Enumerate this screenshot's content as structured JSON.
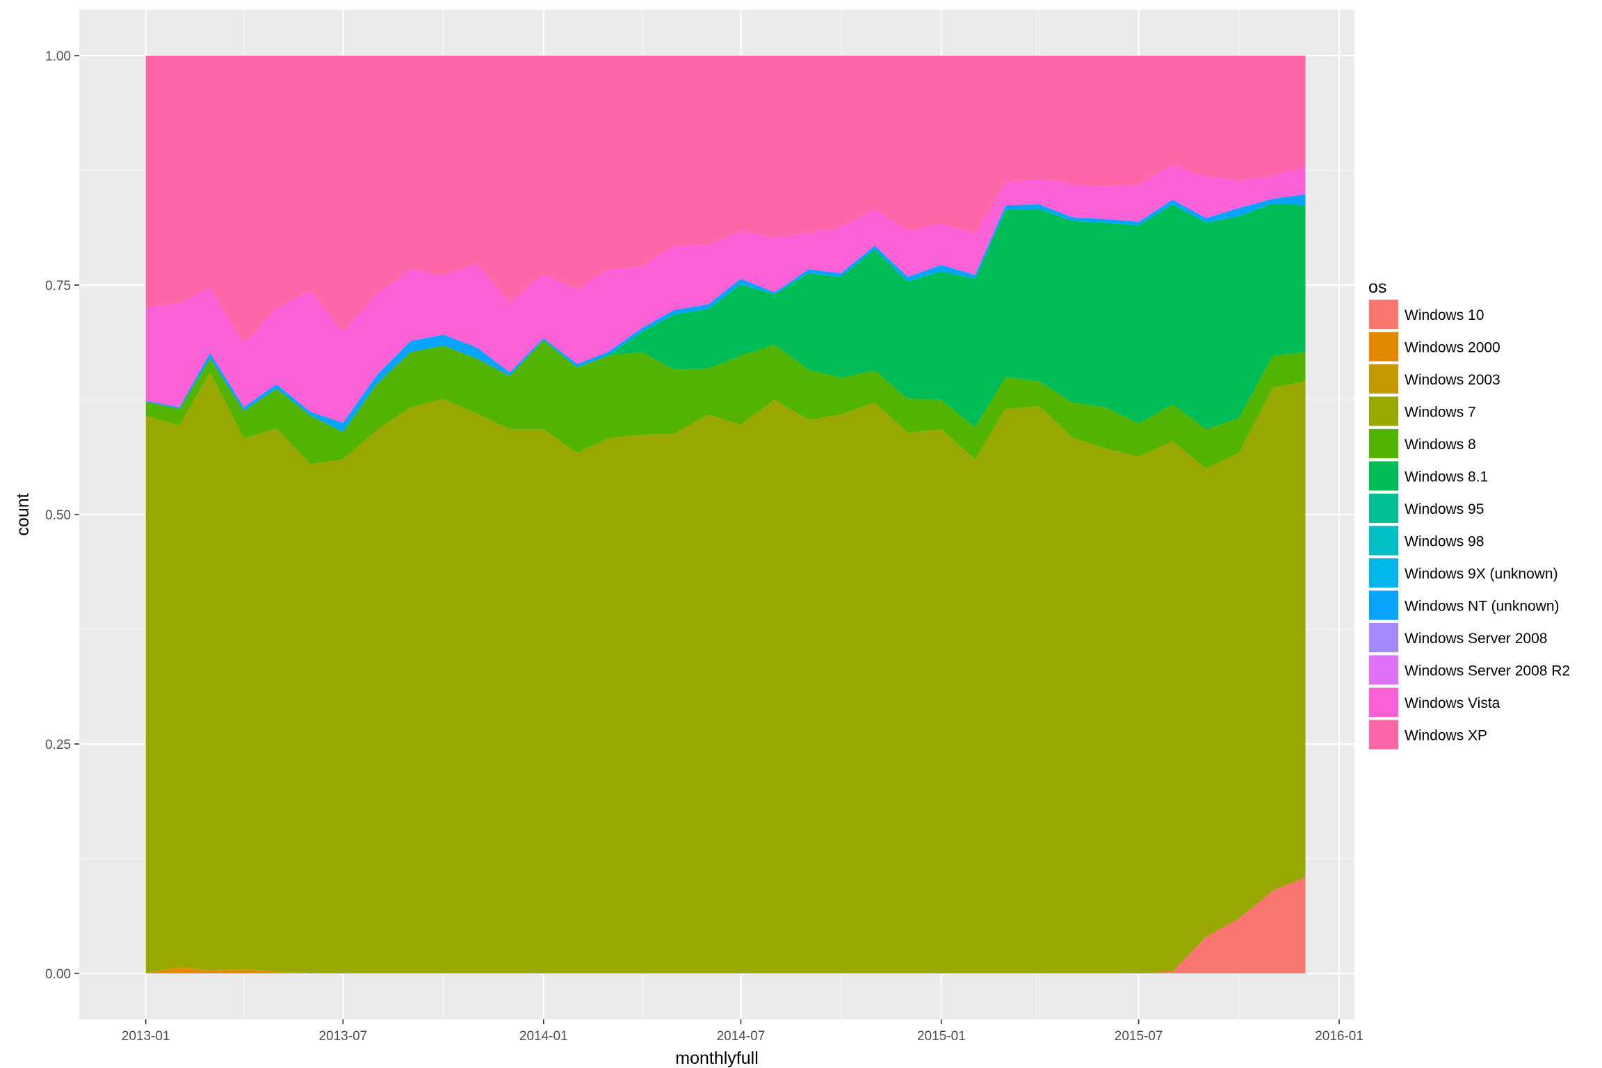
{
  "chart_data": {
    "type": "area",
    "stacked": true,
    "position": "fill",
    "xlabel": "monthlyfull",
    "ylabel": "count",
    "xlim": [
      "2012-11-01",
      "2016-01-15"
    ],
    "ylim": [
      -0.05,
      1.05
    ],
    "x_ticks": [
      "2013-01",
      "2013-07",
      "2014-01",
      "2014-07",
      "2015-01",
      "2015-07",
      "2016-01"
    ],
    "y_ticks": [
      "0.00",
      "0.25",
      "0.50",
      "0.75",
      "1.00"
    ],
    "y_tick_values": [
      0,
      0.25,
      0.5,
      0.75,
      1.0
    ],
    "legend": {
      "title": "os",
      "position": "right"
    },
    "grid": true,
    "x": [
      "2013-01",
      "2013-02",
      "2013-03",
      "2013-04",
      "2013-05",
      "2013-06",
      "2013-07",
      "2013-08",
      "2013-09",
      "2013-10",
      "2013-11",
      "2013-12",
      "2014-01",
      "2014-02",
      "2014-03",
      "2014-04",
      "2014-05",
      "2014-06",
      "2014-07",
      "2014-08",
      "2014-09",
      "2014-10",
      "2014-11",
      "2014-12",
      "2015-01",
      "2015-02",
      "2015-03",
      "2015-04",
      "2015-05",
      "2015-06",
      "2015-07",
      "2015-08",
      "2015-09",
      "2015-10",
      "2015-11",
      "2015-12"
    ],
    "series": [
      {
        "name": "Windows 10",
        "color": "#F8766D",
        "values": [
          0,
          0,
          0,
          0,
          0,
          0,
          0,
          0,
          0,
          0,
          0,
          0,
          0,
          0,
          0,
          0,
          0,
          0,
          0,
          0,
          0,
          0,
          0,
          0,
          0,
          0,
          0,
          0,
          0,
          0,
          0,
          0.002,
          0.04,
          0.06,
          0.09,
          0.105
        ]
      },
      {
        "name": "Windows 2000",
        "color": "#E38900",
        "values": [
          0,
          0.006,
          0.003,
          0.004,
          0.001,
          0,
          0,
          0,
          0,
          0,
          0,
          0,
          0,
          0,
          0,
          0,
          0,
          0,
          0,
          0,
          0,
          0,
          0,
          0,
          0,
          0,
          0,
          0,
          0,
          0,
          0,
          0,
          0,
          0,
          0,
          0
        ]
      },
      {
        "name": "Windows 2003",
        "color": "#C49A00",
        "values": [
          0,
          0.002,
          0,
          0.001,
          0.001,
          0,
          0,
          0,
          0,
          0,
          0,
          0,
          0,
          0,
          0,
          0,
          0,
          0,
          0,
          0,
          0,
          0,
          0,
          0,
          0,
          0,
          0,
          0,
          0,
          0,
          0,
          0,
          0,
          0,
          0,
          0
        ]
      },
      {
        "name": "Windows 7",
        "color": "#99A800",
        "values": [
          0.608,
          0.589,
          0.652,
          0.578,
          0.592,
          0.555,
          0.56,
          0.592,
          0.617,
          0.626,
          0.61,
          0.593,
          0.593,
          0.567,
          0.583,
          0.587,
          0.588,
          0.609,
          0.598,
          0.625,
          0.603,
          0.609,
          0.622,
          0.589,
          0.593,
          0.56,
          0.615,
          0.618,
          0.584,
          0.572,
          0.563,
          0.578,
          0.51,
          0.507,
          0.548,
          0.54
        ]
      },
      {
        "name": "Windows 8",
        "color": "#53B400",
        "values": [
          0.015,
          0.018,
          0.015,
          0.03,
          0.043,
          0.053,
          0.03,
          0.05,
          0.06,
          0.058,
          0.06,
          0.058,
          0.097,
          0.093,
          0.09,
          0.09,
          0.07,
          0.05,
          0.075,
          0.06,
          0.055,
          0.04,
          0.035,
          0.037,
          0.032,
          0.035,
          0.035,
          0.027,
          0.038,
          0.045,
          0.036,
          0.04,
          0.043,
          0.038,
          0.035,
          0.032
        ]
      },
      {
        "name": "Windows 8.1",
        "color": "#00BC56",
        "values": [
          0,
          0,
          0,
          0,
          0,
          0,
          0,
          0,
          0,
          0,
          0,
          0,
          0,
          0,
          0,
          0.022,
          0.06,
          0.065,
          0.078,
          0.055,
          0.105,
          0.11,
          0.132,
          0.128,
          0.14,
          0.162,
          0.182,
          0.188,
          0.198,
          0.201,
          0.216,
          0.218,
          0.225,
          0.22,
          0.166,
          0.16
        ]
      },
      {
        "name": "Windows 95",
        "color": "#00C094",
        "values": [
          0,
          0,
          0,
          0,
          0,
          0,
          0,
          0,
          0,
          0,
          0,
          0,
          0,
          0,
          0,
          0,
          0,
          0,
          0,
          0,
          0,
          0,
          0,
          0,
          0,
          0,
          0,
          0,
          0,
          0,
          0,
          0,
          0,
          0,
          0,
          0
        ]
      },
      {
        "name": "Windows 98",
        "color": "#00BFC4",
        "values": [
          0,
          0,
          0,
          0,
          0,
          0,
          0,
          0,
          0,
          0,
          0,
          0,
          0,
          0,
          0,
          0,
          0,
          0,
          0,
          0,
          0,
          0,
          0,
          0,
          0,
          0,
          0,
          0,
          0,
          0,
          0,
          0,
          0,
          0,
          0,
          0
        ]
      },
      {
        "name": "Windows 9X (unknown)",
        "color": "#00B6EB",
        "values": [
          0,
          0,
          0,
          0,
          0,
          0,
          0,
          0,
          0,
          0,
          0,
          0,
          0,
          0,
          0,
          0,
          0,
          0,
          0,
          0,
          0,
          0,
          0,
          0,
          0,
          0,
          0,
          0,
          0,
          0,
          0,
          0,
          0,
          0,
          0,
          0
        ]
      },
      {
        "name": "Windows NT (unknown)",
        "color": "#06A4FF",
        "values": [
          0.001,
          0.002,
          0.006,
          0.004,
          0.005,
          0.004,
          0.01,
          0.01,
          0.012,
          0.012,
          0.012,
          0.004,
          0.002,
          0.004,
          0.004,
          0.004,
          0.005,
          0.005,
          0.006,
          0.002,
          0.004,
          0.004,
          0.004,
          0.005,
          0.007,
          0.004,
          0.005,
          0.005,
          0.004,
          0.004,
          0.004,
          0.005,
          0.005,
          0.009,
          0.005,
          0.012
        ]
      },
      {
        "name": "Windows Server 2008",
        "color": "#A58AFF",
        "values": [
          0,
          0,
          0,
          0,
          0,
          0,
          0,
          0,
          0,
          0,
          0,
          0,
          0,
          0,
          0,
          0,
          0,
          0,
          0,
          0,
          0,
          0,
          0,
          0,
          0,
          0,
          0,
          0,
          0,
          0,
          0,
          0,
          0,
          0,
          0,
          0
        ]
      },
      {
        "name": "Windows Server 2008 R2",
        "color": "#DF70F8",
        "values": [
          0,
          0,
          0,
          0,
          0,
          0,
          0,
          0,
          0,
          0,
          0,
          0,
          0,
          0,
          0,
          0,
          0,
          0,
          0,
          0,
          0,
          0,
          0,
          0,
          0,
          0,
          0,
          0,
          0,
          0,
          0,
          0,
          0,
          0,
          0,
          0
        ]
      },
      {
        "name": "Windows Vista",
        "color": "#FB61D7",
        "values": [
          0.102,
          0.113,
          0.072,
          0.069,
          0.083,
          0.132,
          0.099,
          0.088,
          0.079,
          0.064,
          0.092,
          0.075,
          0.07,
          0.081,
          0.09,
          0.067,
          0.07,
          0.065,
          0.052,
          0.06,
          0.04,
          0.05,
          0.04,
          0.05,
          0.045,
          0.045,
          0.025,
          0.028,
          0.036,
          0.035,
          0.04,
          0.038,
          0.045,
          0.03,
          0.025,
          0.03
        ]
      },
      {
        "name": "Windows XP",
        "color": "#FF66A8",
        "values": [
          0.274,
          0.27,
          0.252,
          0.314,
          0.275,
          0.256,
          0.301,
          0.26,
          0.232,
          0.24,
          0.226,
          0.27,
          0.238,
          0.255,
          0.233,
          0.23,
          0.207,
          0.206,
          0.191,
          0.198,
          0.193,
          0.187,
          0.167,
          0.191,
          0.183,
          0.194,
          0.138,
          0.134,
          0.14,
          0.143,
          0.141,
          0.119,
          0.132,
          0.136,
          0.131,
          0.121
        ]
      }
    ]
  }
}
